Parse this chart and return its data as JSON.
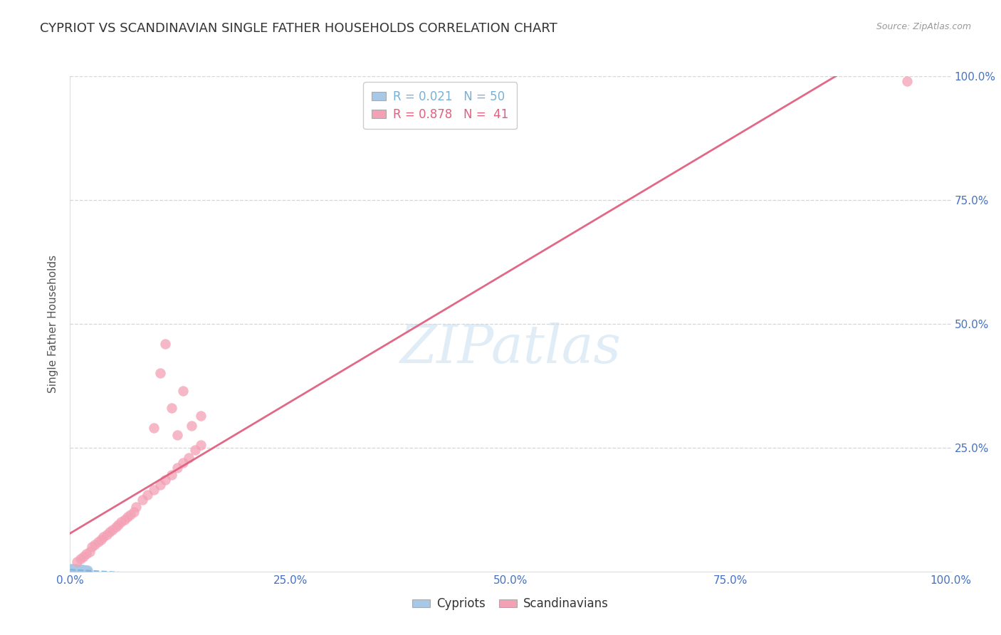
{
  "title": "CYPRIOT VS SCANDINAVIAN SINGLE FATHER HOUSEHOLDS CORRELATION CHART",
  "source_text": "Source: ZipAtlas.com",
  "ylabel": "Single Father Households",
  "xlim": [
    0.0,
    1.0
  ],
  "ylim": [
    0.0,
    1.0
  ],
  "xticks": [
    0.0,
    0.25,
    0.5,
    0.75,
    1.0
  ],
  "yticks": [
    0.25,
    0.5,
    0.75,
    1.0
  ],
  "xticklabels": [
    "0.0%",
    "25.0%",
    "50.0%",
    "75.0%",
    "100.0%"
  ],
  "yticklabels": [
    "25.0%",
    "50.0%",
    "75.0%",
    "100.0%"
  ],
  "legend_entries": [
    {
      "label": "Cypriots",
      "color": "#a8c8e8",
      "R": 0.021,
      "N": 50,
      "line_color": "#7ab0d4"
    },
    {
      "label": "Scandinavians",
      "color": "#f4a0b5",
      "R": 0.878,
      "N": 41,
      "line_color": "#e06080"
    }
  ],
  "cypriot_points": [
    [
      0.001,
      0.002
    ],
    [
      0.002,
      0.001
    ],
    [
      0.003,
      0.003
    ],
    [
      0.001,
      0.005
    ],
    [
      0.004,
      0.002
    ],
    [
      0.002,
      0.004
    ],
    [
      0.005,
      0.001
    ],
    [
      0.003,
      0.003
    ],
    [
      0.006,
      0.003
    ],
    [
      0.002,
      0.004
    ],
    [
      0.004,
      0.004
    ],
    [
      0.007,
      0.002
    ],
    [
      0.005,
      0.003
    ],
    [
      0.008,
      0.001
    ],
    [
      0.003,
      0.005
    ],
    [
      0.006,
      0.004
    ],
    [
      0.009,
      0.003
    ],
    [
      0.004,
      0.003
    ],
    [
      0.007,
      0.002
    ],
    [
      0.01,
      0.002
    ],
    [
      0.005,
      0.004
    ],
    [
      0.008,
      0.003
    ],
    [
      0.011,
      0.001
    ],
    [
      0.006,
      0.005
    ],
    [
      0.009,
      0.003
    ],
    [
      0.012,
      0.002
    ],
    [
      0.007,
      0.004
    ],
    [
      0.01,
      0.003
    ],
    [
      0.013,
      0.001
    ],
    [
      0.008,
      0.004
    ],
    [
      0.011,
      0.003
    ],
    [
      0.014,
      0.002
    ],
    [
      0.009,
      0.003
    ],
    [
      0.012,
      0.003
    ],
    [
      0.015,
      0.001
    ],
    [
      0.01,
      0.004
    ],
    [
      0.013,
      0.002
    ],
    [
      0.016,
      0.002
    ],
    [
      0.011,
      0.003
    ],
    [
      0.014,
      0.003
    ],
    [
      0.017,
      0.001
    ],
    [
      0.012,
      0.004
    ],
    [
      0.015,
      0.002
    ],
    [
      0.018,
      0.002
    ],
    [
      0.013,
      0.003
    ],
    [
      0.016,
      0.003
    ],
    [
      0.019,
      0.001
    ],
    [
      0.014,
      0.004
    ],
    [
      0.017,
      0.002
    ],
    [
      0.02,
      0.002
    ]
  ],
  "scandinavian_points": [
    [
      0.008,
      0.02
    ],
    [
      0.012,
      0.025
    ],
    [
      0.015,
      0.03
    ],
    [
      0.018,
      0.035
    ],
    [
      0.022,
      0.04
    ],
    [
      0.025,
      0.05
    ],
    [
      0.028,
      0.055
    ],
    [
      0.032,
      0.06
    ],
    [
      0.035,
      0.065
    ],
    [
      0.038,
      0.07
    ],
    [
      0.042,
      0.075
    ],
    [
      0.045,
      0.08
    ],
    [
      0.048,
      0.085
    ],
    [
      0.052,
      0.09
    ],
    [
      0.055,
      0.095
    ],
    [
      0.058,
      0.1
    ],
    [
      0.062,
      0.105
    ],
    [
      0.065,
      0.11
    ],
    [
      0.068,
      0.115
    ],
    [
      0.072,
      0.12
    ],
    [
      0.075,
      0.13
    ],
    [
      0.082,
      0.145
    ],
    [
      0.088,
      0.155
    ],
    [
      0.095,
      0.165
    ],
    [
      0.102,
      0.175
    ],
    [
      0.108,
      0.185
    ],
    [
      0.115,
      0.195
    ],
    [
      0.122,
      0.21
    ],
    [
      0.128,
      0.22
    ],
    [
      0.135,
      0.23
    ],
    [
      0.142,
      0.245
    ],
    [
      0.148,
      0.255
    ],
    [
      0.108,
      0.46
    ],
    [
      0.128,
      0.365
    ],
    [
      0.095,
      0.29
    ],
    [
      0.115,
      0.33
    ],
    [
      0.102,
      0.4
    ],
    [
      0.138,
      0.295
    ],
    [
      0.122,
      0.275
    ],
    [
      0.148,
      0.315
    ],
    [
      0.95,
      0.99
    ]
  ],
  "grid_color": "#cccccc",
  "background_color": "#ffffff",
  "watermark": "ZIPatlas",
  "title_color": "#333333",
  "tick_color": "#4472c4"
}
